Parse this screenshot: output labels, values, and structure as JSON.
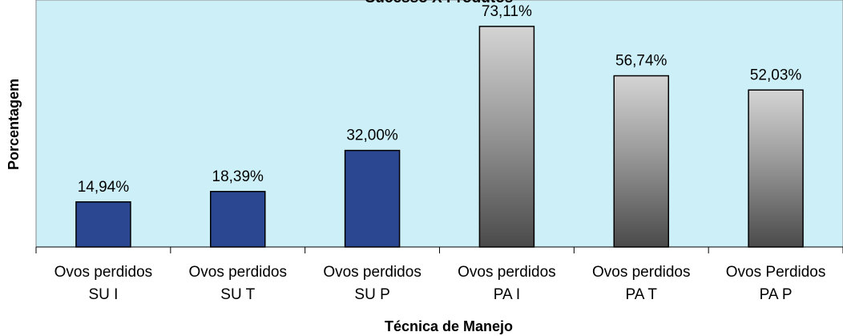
{
  "chart_data": {
    "type": "bar",
    "title": "Sucesso X Produtos",
    "x_label": "Técnica de Manejo",
    "y_label": "Porcentagem",
    "categories": [
      [
        "Ovos perdidos",
        "SU I"
      ],
      [
        "Ovos perdidos",
        "SU T"
      ],
      [
        "Ovos perdidos",
        "SU P"
      ],
      [
        "Ovos perdidos",
        "PA I"
      ],
      [
        "Ovos perdidos",
        "PA T"
      ],
      [
        "Ovos Perdidos",
        "PA P"
      ]
    ],
    "values": [
      14.94,
      18.39,
      32.0,
      73.11,
      56.74,
      52.03
    ],
    "value_labels": [
      "14,94%",
      "18,39%",
      "32,00%",
      "73,11%",
      "56,74%",
      "52,03%"
    ],
    "colors": [
      "#2b4791",
      "#2b4791",
      "#2b4791",
      "#d4d4d4",
      "#d4d4d4",
      "#d4d4d4"
    ],
    "gradient": [
      false,
      false,
      false,
      true,
      true,
      true
    ],
    "ylim": [
      0,
      80
    ],
    "grid": false
  }
}
